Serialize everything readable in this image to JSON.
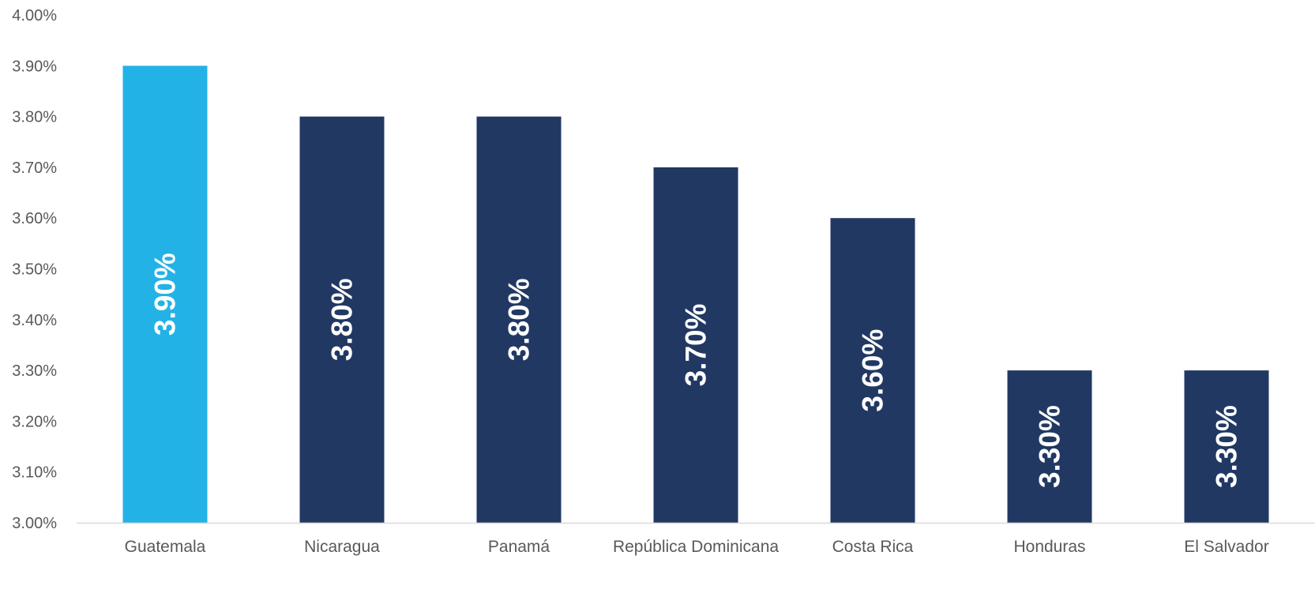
{
  "chart_data": {
    "type": "bar",
    "title": "",
    "xlabel": "",
    "ylabel": "",
    "categories": [
      "Guatemala",
      "Nicaragua",
      "Panamá",
      "República Dominicana",
      "Costa Rica",
      "Honduras",
      "El Salvador"
    ],
    "values": [
      3.9,
      3.8,
      3.8,
      3.7,
      3.6,
      3.3,
      3.3
    ],
    "data_labels": [
      "3.90%",
      "3.80%",
      "3.80%",
      "3.70%",
      "3.60%",
      "3.30%",
      "3.30%"
    ],
    "ylim": [
      3.0,
      4.0
    ],
    "yticks": [
      3.0,
      3.1,
      3.2,
      3.3,
      3.4,
      3.5,
      3.6,
      3.7,
      3.8,
      3.9,
      4.0
    ],
    "ytick_labels": [
      "3.00%",
      "3.10%",
      "3.20%",
      "3.30%",
      "3.40%",
      "3.50%",
      "3.60%",
      "3.70%",
      "3.80%",
      "3.90%",
      "4.00%"
    ],
    "grid": false,
    "legend": "none",
    "colors": {
      "highlight": "#23b2e6",
      "default": "#213863",
      "axis": "#d9d9d9",
      "text": "#595959",
      "data_label": "#ffffff"
    },
    "highlight_index": 0
  }
}
